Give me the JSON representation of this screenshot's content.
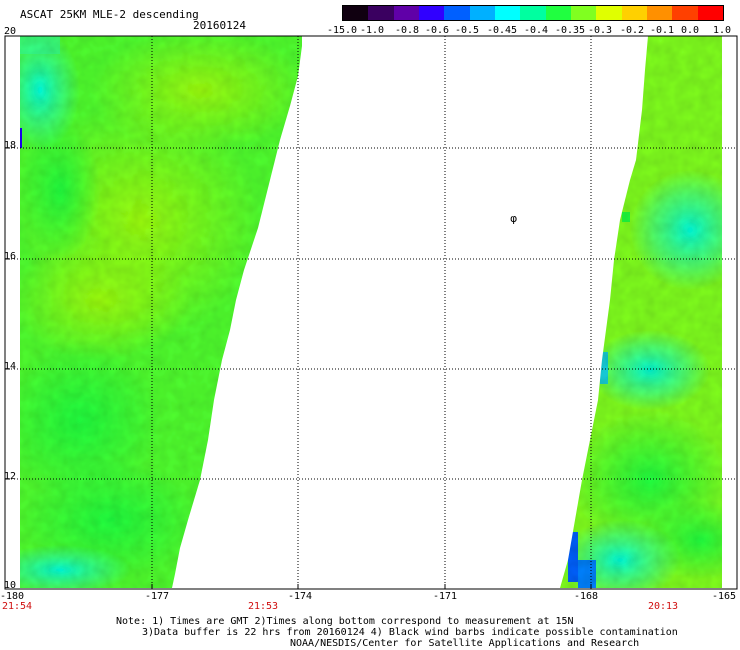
{
  "header": {
    "title": "ASCAT 25KM MLE-2 descending",
    "date": "20160124"
  },
  "colorbar": {
    "labels": [
      "-15.0",
      "-1.0",
      "-0.8",
      "-0.6",
      "-0.5",
      "-0.45",
      "-0.4",
      "-0.35",
      "-0.3",
      "-0.2",
      "-0.1",
      "0.0",
      "1.0"
    ],
    "colors": [
      "#100010",
      "#3a0060",
      "#6000a8",
      "#3000ff",
      "#0060ff",
      "#00b0ff",
      "#00ffff",
      "#00ffa0",
      "#20ff40",
      "#80ff20",
      "#e0ff00",
      "#ffd000",
      "#ff9000",
      "#ff4000",
      "#ff0000"
    ]
  },
  "axes": {
    "lat_labels": [
      "20",
      "18",
      "16",
      "14",
      "12",
      "10"
    ],
    "lon_labels": [
      "-180",
      "-177",
      "-174",
      "-171",
      "-168",
      "-165"
    ]
  },
  "pass_times": [
    "21:54",
    "21:53",
    "20:13"
  ],
  "annotation": {
    "glyph": "φ"
  },
  "notes": {
    "line1": "Note: 1) Times are GMT 2)Times along bottom correspond to measurement at 15N",
    "line2": "3)Data buffer is 22 hrs from 20160124 4) Black wind barbs indicate possible contamination",
    "line3": "NOAA/NESDIS/Center for Satellite Applications and Research"
  }
}
